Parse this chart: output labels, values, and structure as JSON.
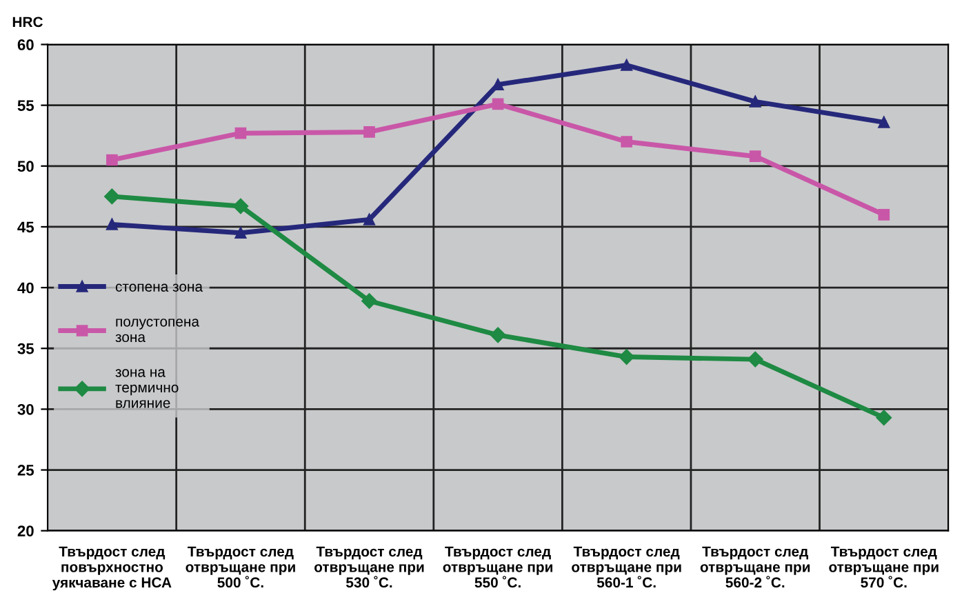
{
  "chart_data": {
    "type": "line",
    "ylabel": "HRC",
    "categories": [
      "Твърдост след\nповърхностно\nуякчаване с НСА",
      "Твърдост след\nотвръщане при\n500 ˚С.",
      "Твърдост след\nотвръщане при\n530 ˚С.",
      "Твърдост след\nотвръщане при\n550 ˚С.",
      "Твърдост след\nотвръщане при\n560-1 ˚С.",
      "Твърдост след\nотвръщане при\n560-2 ˚С.",
      "Твърдост след\nотвръщане при\n570 ˚С."
    ],
    "series": [
      {
        "name": "стопена зона",
        "color": "#25287a",
        "marker": "triangle",
        "values": [
          45.2,
          44.5,
          45.6,
          56.7,
          58.3,
          55.3,
          53.6
        ]
      },
      {
        "name": "полустопена\nзона",
        "color": "#c957a8",
        "marker": "square",
        "values": [
          50.5,
          52.7,
          52.8,
          55.1,
          52.0,
          50.8,
          46.0
        ]
      },
      {
        "name": "зона на\nтермично\nвлияние",
        "color": "#1e8a43",
        "marker": "diamond",
        "values": [
          47.5,
          46.7,
          38.9,
          36.1,
          34.3,
          34.1,
          29.3
        ]
      }
    ],
    "ylim": [
      20,
      60
    ],
    "yticks": [
      20,
      25,
      30,
      35,
      40,
      45,
      50,
      55,
      60
    ],
    "grid": true,
    "legend": "left",
    "line_style": "solid"
  }
}
